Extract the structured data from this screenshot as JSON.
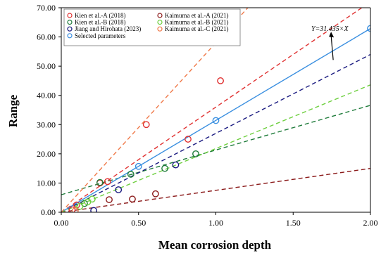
{
  "chart_data": {
    "type": "scatter",
    "xlabel": "Mean corrosion depth",
    "ylabel": "Range",
    "xlim": [
      0,
      2
    ],
    "ylim": [
      0,
      70
    ],
    "x_ticks": [
      "0.00",
      "0.50",
      "1.00",
      "1.50",
      "2.00"
    ],
    "y_ticks": [
      "0.00",
      "10.00",
      "20.00",
      "30.00",
      "40.00",
      "50.00",
      "60.00",
      "70.00"
    ],
    "grid": false,
    "legend_position": "top-left",
    "annotation": "Y=31.435×X",
    "series": [
      {
        "name": "Kien et al.-A (2018)",
        "color": "#e03131",
        "dashed": true,
        "points": [
          [
            0.07,
            0.8
          ],
          [
            0.1,
            2.5
          ],
          [
            0.25,
            10.0
          ],
          [
            0.3,
            10.5
          ],
          [
            0.55,
            30.0
          ],
          [
            0.82,
            25.0
          ],
          [
            1.03,
            45.0
          ]
        ],
        "fit": {
          "slope": 36.0,
          "intercept": 0
        }
      },
      {
        "name": "Kien et al.-B (2018)",
        "color": "#1e7b3a",
        "dashed": true,
        "points": [
          [
            0.15,
            3.0
          ],
          [
            0.25,
            10.2
          ],
          [
            0.45,
            13.0
          ],
          [
            0.67,
            15.0
          ],
          [
            0.87,
            20.0
          ]
        ],
        "fit": {
          "slope": 15.3,
          "intercept": 6.0
        }
      },
      {
        "name": "Jiang and Hirohata (2023)",
        "color": "#1a1a80",
        "dashed": true,
        "points": [
          [
            0.21,
            0.6
          ],
          [
            0.37,
            7.7
          ],
          [
            0.74,
            16.2
          ]
        ],
        "fit": {
          "slope": 27.0,
          "intercept": 0
        }
      },
      {
        "name": "Selected parameters",
        "color": "#3a8fe0",
        "dashed": false,
        "points": [
          [
            0.5,
            15.7
          ],
          [
            1.0,
            31.4
          ],
          [
            2.0,
            62.9
          ]
        ],
        "fit": {
          "slope": 31.435,
          "intercept": 0
        }
      },
      {
        "name": "Kaimuma et al.-A (2021)",
        "color": "#8b1a1a",
        "dashed": true,
        "points": [
          [
            0.31,
            4.3
          ],
          [
            0.46,
            4.5
          ],
          [
            0.61,
            6.3
          ]
        ],
        "fit": {
          "slope": 7.5,
          "intercept": 0
        }
      },
      {
        "name": "Kaimuma et al.-B (2021)",
        "color": "#6ecf3f",
        "dashed": true,
        "points": [
          [
            0.17,
            3.5
          ],
          [
            0.2,
            4.5
          ],
          [
            0.12,
            2.0
          ]
        ],
        "fit": {
          "slope": 21.8,
          "intercept": 0
        }
      },
      {
        "name": "Kaimuma et al.-C (2021)",
        "color": "#f07a4a",
        "dashed": true,
        "points": [
          [
            0.09,
            0.5
          ]
        ],
        "fit": {
          "slope": 58.0,
          "intercept": 0
        }
      }
    ]
  }
}
